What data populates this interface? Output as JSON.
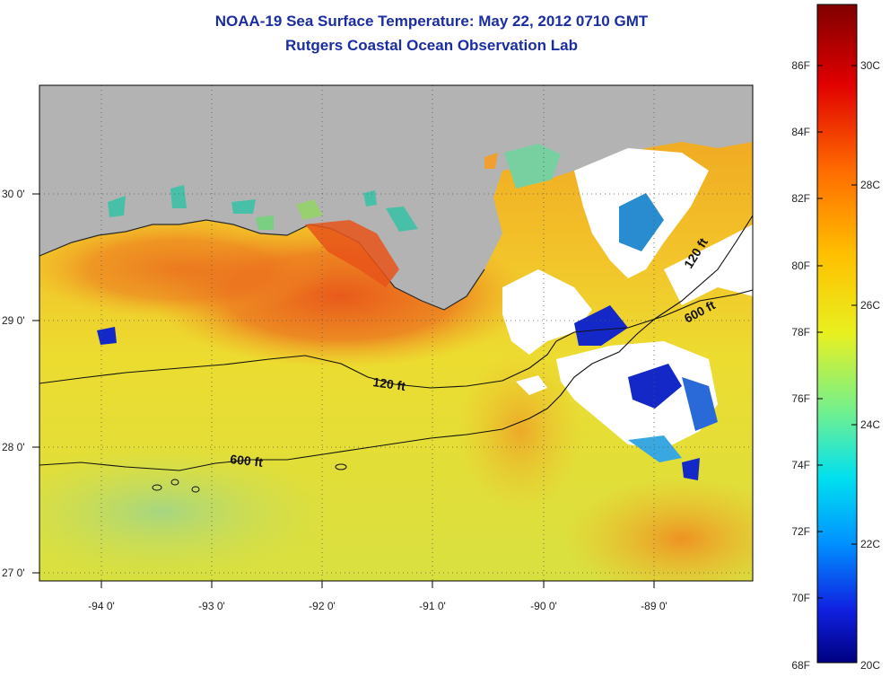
{
  "title": "NOAA-19 Sea Surface Temperature:  May 22, 2012 0710 GMT",
  "subtitle": "Rutgers Coastal Ocean Observation Lab",
  "lat_ticks": [
    "30 0'",
    "29 0'",
    "28 0'",
    "27 0'"
  ],
  "lon_ticks": [
    "-94 0'",
    "-93 0'",
    "-92 0'",
    "-91 0'",
    "-90 0'",
    "-89 0'"
  ],
  "colorbar": {
    "fahrenheit_ticks": [
      "86F",
      "84F",
      "82F",
      "80F",
      "78F",
      "76F",
      "74F",
      "72F",
      "70F",
      "68F"
    ],
    "celsius_ticks": [
      "30C",
      "28C",
      "26C",
      "24C",
      "22C",
      "20C"
    ]
  },
  "contours": {
    "shallow_label": "120 ft",
    "deep_label": "600 ft"
  },
  "colors": {
    "land": "#b3b3b3",
    "title": "#1b2ea0"
  }
}
